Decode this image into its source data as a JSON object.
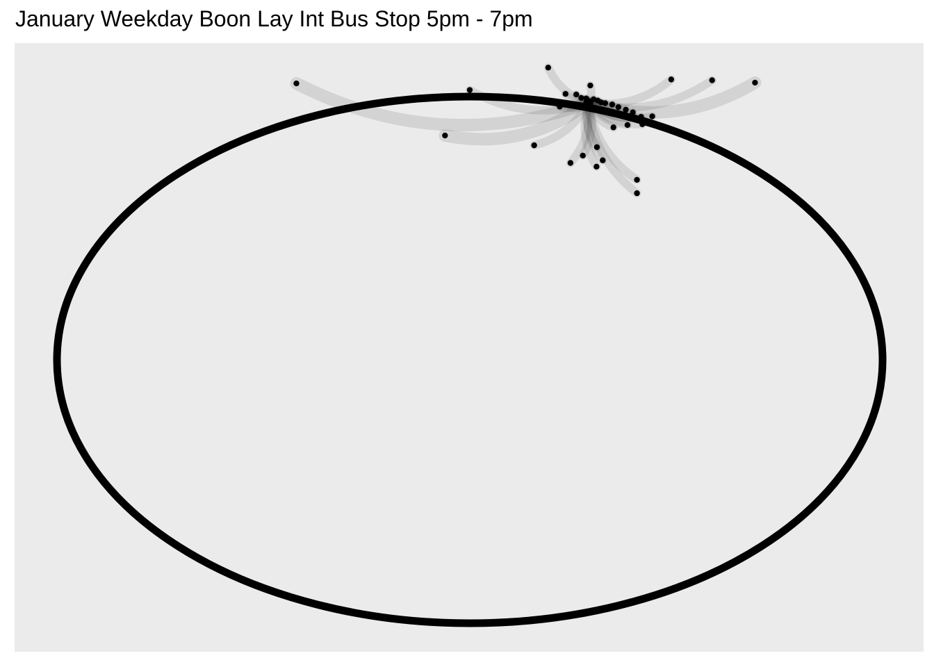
{
  "chart_data": {
    "type": "flow-map",
    "title": "January Weekday Boon Lay Int Bus Stop 5pm - 7pm",
    "grid": false,
    "legend": "none",
    "colors": {
      "panel_background": "#ebebeb",
      "page_background": "#ffffff",
      "boundary": "#000000",
      "flow_line": "#2a2a2a",
      "point": "#000000"
    },
    "boundary": {
      "shape": "ellipse",
      "cx": 0,
      "cy": 0,
      "rx": 1,
      "ry": 1
    },
    "origin": {
      "name": "Boon Lay Int",
      "x": 0.287,
      "y": 0.976
    },
    "destinations": [
      {
        "x": -0.42,
        "y": 1.05
      },
      {
        "x": 0.0,
        "y": 1.025
      },
      {
        "x": 0.19,
        "y": 1.11
      },
      {
        "x": 0.292,
        "y": 1.042
      },
      {
        "x": 0.488,
        "y": 1.065
      },
      {
        "x": 0.587,
        "y": 1.062
      },
      {
        "x": 0.691,
        "y": 1.053
      },
      {
        "x": 0.232,
        "y": 1.01
      },
      {
        "x": 0.258,
        "y": 1.008
      },
      {
        "x": 0.27,
        "y": 0.995
      },
      {
        "x": 0.282,
        "y": 0.993
      },
      {
        "x": 0.3,
        "y": 0.99
      },
      {
        "x": 0.31,
        "y": 0.985
      },
      {
        "x": 0.318,
        "y": 0.978
      },
      {
        "x": 0.328,
        "y": 0.975
      },
      {
        "x": 0.345,
        "y": 0.97
      },
      {
        "x": 0.36,
        "y": 0.96
      },
      {
        "x": 0.378,
        "y": 0.95
      },
      {
        "x": 0.395,
        "y": 0.94
      },
      {
        "x": 0.415,
        "y": 0.923
      },
      {
        "x": 0.442,
        "y": 0.925
      },
      {
        "x": 0.218,
        "y": 0.962
      },
      {
        "x": 0.228,
        "y": 0.97
      },
      {
        "x": 0.418,
        "y": 0.895
      },
      {
        "x": 0.382,
        "y": 0.892
      },
      {
        "x": 0.348,
        "y": 0.883
      },
      {
        "x": 0.308,
        "y": 0.808
      },
      {
        "x": 0.274,
        "y": 0.776
      },
      {
        "x": 0.322,
        "y": 0.758
      },
      {
        "x": 0.307,
        "y": 0.734
      },
      {
        "x": 0.244,
        "y": 0.748
      },
      {
        "x": 0.156,
        "y": 0.815
      },
      {
        "x": 0.405,
        "y": 0.684
      },
      {
        "x": 0.405,
        "y": 0.633
      },
      {
        "x": -0.06,
        "y": 0.852
      }
    ]
  }
}
